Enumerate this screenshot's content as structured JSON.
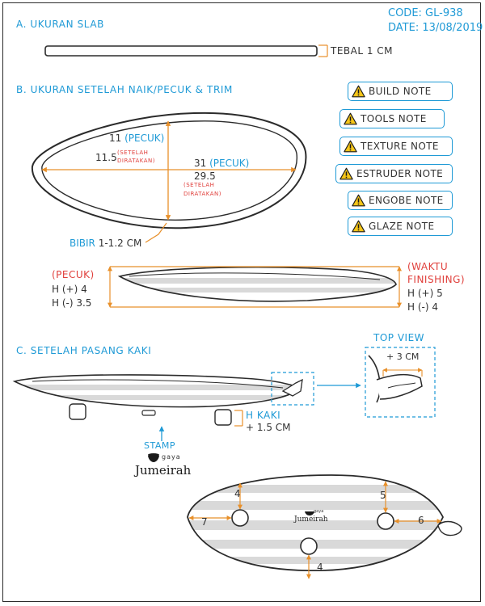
{
  "header": {
    "code": "CODE: GL-938",
    "date": "DATE: 13/08/2019"
  },
  "section_a": {
    "title": "A. UKURAN SLAB",
    "thickness": "TEBAL 1 CM"
  },
  "section_b": {
    "title": "B. UKURAN SETELAH NAIK/PECUK & TRIM",
    "width_pecuk_num": "11",
    "width_pecuk_tag": "(PECUK)",
    "width_flat": "11.5",
    "setelah": "(SETELAH",
    "diratakan": "DIRATAKAN)",
    "length_pecuk_num": "31",
    "length_pecuk_tag": "(PECUK)",
    "length_flat": "29.5",
    "rim": "BIBIR 1-1.2 CM"
  },
  "height": {
    "pecuk_label": "(PECUK)",
    "pecuk_plus": "H (+) 4",
    "pecuk_minus": "H (-) 3.5",
    "finishing_label_1": "(WAKTU",
    "finishing_label_2": "FINISHING)",
    "finishing_plus": "H (+) 5",
    "finishing_minus": "H (-) 4"
  },
  "notes": [
    "BUILD NOTE",
    "TOOLS NOTE",
    "TEXTURE NOTE",
    "ESTRUDER NOTE",
    "ENGOBE NOTE",
    "GLAZE NOTE"
  ],
  "section_c": {
    "title": "C. SETELAH PASANG KAKI",
    "top_view": "TOP VIEW",
    "top_dim": "+ 3 CM",
    "kaki_1": "H KAKI",
    "kaki_2": "+ 1.5 CM",
    "stamp": "STAMP",
    "logo_small": "gaya",
    "logo_brand": "Jumeirah"
  },
  "bottom_view": {
    "dim_left": "7",
    "dim_top_left": "4",
    "dim_top_right": "5",
    "dim_right": "6",
    "dim_bottom": "4"
  },
  "colors": {
    "accent_blue": "#1f9ad6",
    "dimension_orange": "#e8902a",
    "red_text": "#e0403c",
    "line_dark": "#2b2b2b",
    "stripe_gray": "#d9d9d9"
  },
  "icons": {
    "warning": "warning-triangle-icon",
    "arrow": "arrow-icon"
  }
}
